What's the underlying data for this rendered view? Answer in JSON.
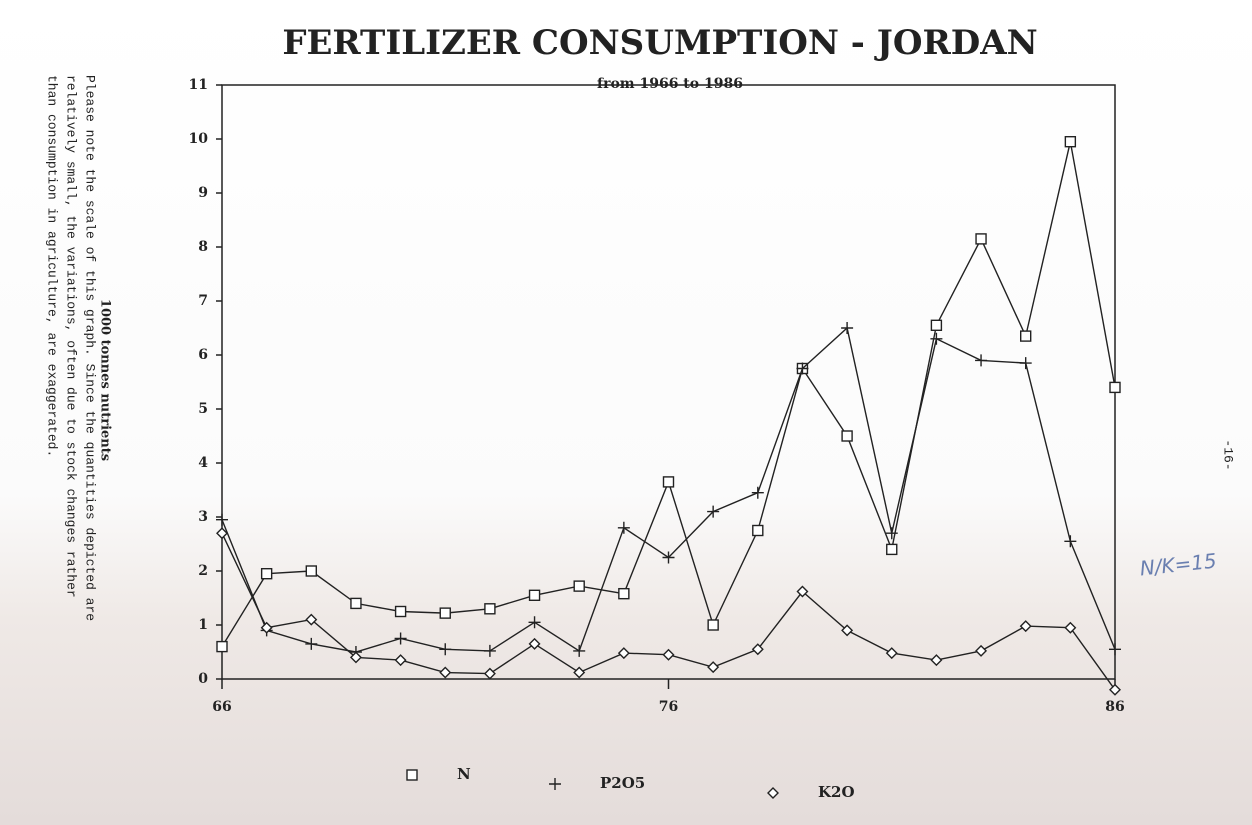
{
  "chart_data": {
    "type": "line",
    "title": "FERTILIZER CONSUMPTION  -  JORDAN",
    "subtitle": "from 1966 to 1986",
    "y_label": "1000 tonnes nutrients",
    "note": [
      "Please note the scale of this graph. Since the quantities depicted are",
      "relatively small, the variations, often due to stock changes rather",
      "than consumption in agriculture, are exaggerated."
    ],
    "annotations": [
      "N/K=15",
      "-16-"
    ],
    "x": [
      66,
      67,
      68,
      69,
      70,
      71,
      72,
      73,
      74,
      75,
      76,
      77,
      78,
      79,
      80,
      81,
      82,
      83,
      84,
      85,
      86
    ],
    "xlim": [
      66,
      86
    ],
    "xticks": [
      66,
      76,
      86
    ],
    "ylim": [
      0,
      11
    ],
    "yticks": [
      0,
      1,
      2,
      3,
      4,
      5,
      6,
      7,
      8,
      9,
      10,
      11
    ],
    "series": [
      {
        "name": "N",
        "color": "#222222",
        "marker": "square",
        "values": [
          0.6,
          1.95,
          2.0,
          1.4,
          1.25,
          1.22,
          1.3,
          1.55,
          1.72,
          1.58,
          3.65,
          1.0,
          2.75,
          5.75,
          4.5,
          2.4,
          6.55,
          8.15,
          6.35,
          9.95,
          5.4
        ]
      },
      {
        "name": "P2O5",
        "color": "#222222",
        "marker": "plus",
        "values": [
          2.95,
          0.9,
          0.65,
          0.5,
          0.75,
          0.55,
          0.52,
          1.05,
          0.52,
          2.8,
          2.25,
          3.1,
          3.45,
          5.75,
          6.5,
          2.7,
          6.3,
          5.9,
          5.85,
          2.55,
          0.55
        ]
      },
      {
        "name": "K2O",
        "color": "#222222",
        "marker": "diamond",
        "values": [
          2.7,
          0.95,
          1.1,
          0.4,
          0.35,
          0.12,
          0.1,
          0.65,
          0.12,
          0.48,
          0.45,
          0.22,
          0.55,
          1.62,
          0.9,
          0.48,
          0.35,
          0.52,
          0.98,
          0.95,
          -0.2
        ]
      }
    ]
  }
}
